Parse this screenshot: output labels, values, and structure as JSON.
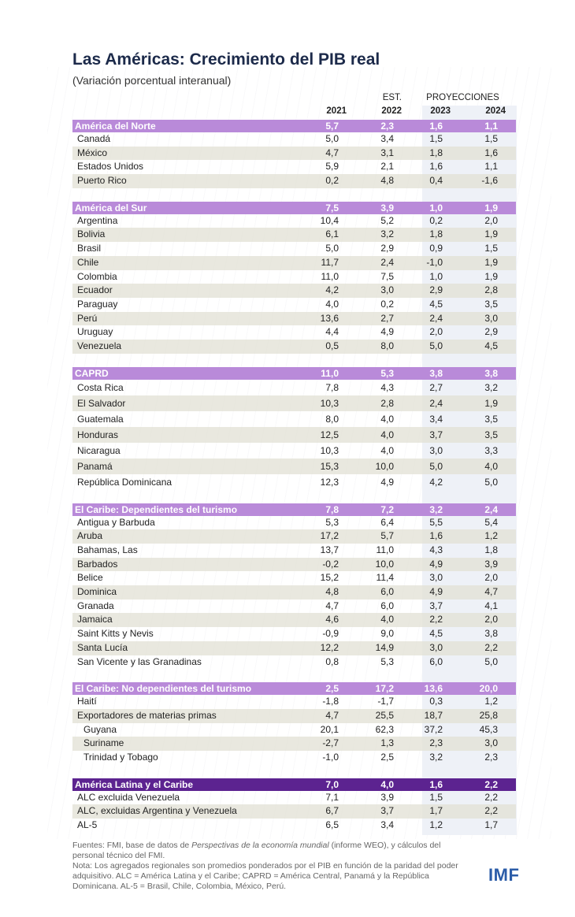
{
  "title": "Las Américas: Crecimiento del PIB real",
  "subtitle": "(Variación porcentual interanual)",
  "colors": {
    "group_header": "#b98ad9",
    "total_header": "#5c2390",
    "projection_band": "#eef1f7",
    "logo": "#2b5ca8"
  },
  "column_groups": {
    "est": "EST.",
    "proj": "PROYECCIONES"
  },
  "columns": [
    "2021",
    "2022",
    "2023",
    "2024"
  ],
  "chart_data": {
    "type": "table",
    "title": "Las Américas: Crecimiento del PIB real",
    "columns": [
      "2021",
      "2022",
      "2023",
      "2024"
    ],
    "sections": [
      {
        "name": "América del Norte",
        "values": [
          "5,7",
          "2,3",
          "1,6",
          "1,1"
        ],
        "rows": [
          {
            "label": "Canadá",
            "values": [
              "5,0",
              "3,4",
              "1,5",
              "1,5"
            ]
          },
          {
            "label": "México",
            "values": [
              "4,7",
              "3,1",
              "1,8",
              "1,6"
            ]
          },
          {
            "label": "Estados Unidos",
            "values": [
              "5,9",
              "2,1",
              "1,6",
              "1,1"
            ]
          },
          {
            "label": "Puerto Rico",
            "values": [
              "0,2",
              "4,8",
              "0,4",
              "-1,6"
            ]
          }
        ]
      },
      {
        "name": "América del Sur",
        "values": [
          "7,5",
          "3,9",
          "1,0",
          "1,9"
        ],
        "rows": [
          {
            "label": "Argentina",
            "values": [
              "10,4",
              "5,2",
              "0,2",
              "2,0"
            ]
          },
          {
            "label": "Bolivia",
            "values": [
              "6,1",
              "3,2",
              "1,8",
              "1,9"
            ]
          },
          {
            "label": "Brasil",
            "values": [
              "5,0",
              "2,9",
              "0,9",
              "1,5"
            ]
          },
          {
            "label": "Chile",
            "values": [
              "11,7",
              "2,4",
              "-1,0",
              "1,9"
            ]
          },
          {
            "label": "Colombia",
            "values": [
              "11,0",
              "7,5",
              "1,0",
              "1,9"
            ]
          },
          {
            "label": "Ecuador",
            "values": [
              "4,2",
              "3,0",
              "2,9",
              "2,8"
            ]
          },
          {
            "label": "Paraguay",
            "values": [
              "4,0",
              "0,2",
              "4,5",
              "3,5"
            ]
          },
          {
            "label": "Perú",
            "values": [
              "13,6",
              "2,7",
              "2,4",
              "3,0"
            ]
          },
          {
            "label": "Uruguay",
            "values": [
              "4,4",
              "4,9",
              "2,0",
              "2,9"
            ]
          },
          {
            "label": "Venezuela",
            "values": [
              "0,5",
              "8,0",
              "5,0",
              "4,5"
            ]
          }
        ]
      },
      {
        "name": "CAPRD",
        "values": [
          "11,0",
          "5,3",
          "3,8",
          "3,8"
        ],
        "rows": [
          {
            "label": "Costa Rica",
            "values": [
              "7,8",
              "4,3",
              "2,7",
              "3,2"
            ]
          },
          {
            "label": "El Salvador",
            "values": [
              "10,3",
              "2,8",
              "2,4",
              "1,9"
            ]
          },
          {
            "label": "Guatemala",
            "values": [
              "8,0",
              "4,0",
              "3,4",
              "3,5"
            ]
          },
          {
            "label": "Honduras",
            "values": [
              "12,5",
              "4,0",
              "3,7",
              "3,5"
            ]
          },
          {
            "label": "Nicaragua",
            "values": [
              "10,3",
              "4,0",
              "3,0",
              "3,3"
            ]
          },
          {
            "label": "Panamá",
            "values": [
              "15,3",
              "10,0",
              "5,0",
              "4,0"
            ]
          },
          {
            "label": "República Dominicana",
            "values": [
              "12,3",
              "4,9",
              "4,2",
              "5,0"
            ]
          }
        ]
      },
      {
        "name": "El Caribe: Dependientes del turismo",
        "values": [
          "7,8",
          "7,2",
          "3,2",
          "2,4"
        ],
        "rows": [
          {
            "label": "Antigua y Barbuda",
            "values": [
              "5,3",
              "6,4",
              "5,5",
              "5,4"
            ]
          },
          {
            "label": "Aruba",
            "values": [
              "17,2",
              "5,7",
              "1,6",
              "1,2"
            ]
          },
          {
            "label": "Bahamas, Las",
            "values": [
              "13,7",
              "11,0",
              "4,3",
              "1,8"
            ]
          },
          {
            "label": "Barbados",
            "values": [
              "-0,2",
              "10,0",
              "4,9",
              "3,9"
            ]
          },
          {
            "label": "Belice",
            "values": [
              "15,2",
              "11,4",
              "3,0",
              "2,0"
            ]
          },
          {
            "label": "Dominica",
            "values": [
              "4,8",
              "6,0",
              "4,9",
              "4,7"
            ]
          },
          {
            "label": "Granada",
            "values": [
              "4,7",
              "6,0",
              "3,7",
              "4,1"
            ]
          },
          {
            "label": "Jamaica",
            "values": [
              "4,6",
              "4,0",
              "2,2",
              "2,0"
            ]
          },
          {
            "label": "Saint Kitts y Nevis",
            "values": [
              "-0,9",
              "9,0",
              "4,5",
              "3,8"
            ]
          },
          {
            "label": "Santa Lucía",
            "values": [
              "12,2",
              "14,9",
              "3,0",
              "2,2"
            ]
          },
          {
            "label": "San Vicente y las Granadinas",
            "values": [
              "0,8",
              "5,3",
              "6,0",
              "5,0"
            ]
          }
        ]
      },
      {
        "name": "El Caribe: No dependientes del turismo",
        "values": [
          "2,5",
          "17,2",
          "13,6",
          "20,0"
        ],
        "rows": [
          {
            "label": "Haití",
            "values": [
              "-1,8",
              "-1,7",
              "0,3",
              "1,2"
            ]
          },
          {
            "label": "Exportadores de materias primas",
            "values": [
              "4,7",
              "25,5",
              "18,7",
              "25,8"
            ]
          },
          {
            "label": "Guyana",
            "sub_item": true,
            "values": [
              "20,1",
              "62,3",
              "37,2",
              "45,3"
            ]
          },
          {
            "label": "Suriname",
            "sub_item": true,
            "values": [
              "-2,7",
              "1,3",
              "2,3",
              "3,0"
            ]
          },
          {
            "label": "Trinidad y Tobago",
            "sub_item": true,
            "values": [
              "-1,0",
              "2,5",
              "3,2",
              "2,3"
            ]
          }
        ]
      },
      {
        "name": "América Latina y el Caribe",
        "total": true,
        "values": [
          "7,0",
          "4,0",
          "1,6",
          "2,2"
        ],
        "rows": [
          {
            "label": "ALC excluida Venezuela",
            "values": [
              "7,1",
              "3,9",
              "1,5",
              "2,2"
            ]
          },
          {
            "label": "ALC, excluidas Argentina y Venezuela",
            "values": [
              "6,7",
              "3,7",
              "1,7",
              "2,2"
            ]
          },
          {
            "label": "AL-5",
            "values": [
              "6,5",
              "3,4",
              "1,2",
              "1,7"
            ]
          }
        ]
      }
    ]
  },
  "footer": {
    "sources_prefix": "Fuentes: FMI, base de datos de ",
    "sources_italic": "Perspectivas de la economía mundial",
    "sources_suffix": " (informe WEO), y cálculos del personal técnico del FMI.",
    "note": "Nota: Los agregados regionales son promedios ponderados por el PIB en función de la paridad del poder adquisitivo. ALC = América Latina y el Caribe; CAPRD = América Central, Panamá y la República Dominicana. AL-5 = Brasil, Chile, Colombia, México, Perú."
  },
  "logo": "IMF"
}
